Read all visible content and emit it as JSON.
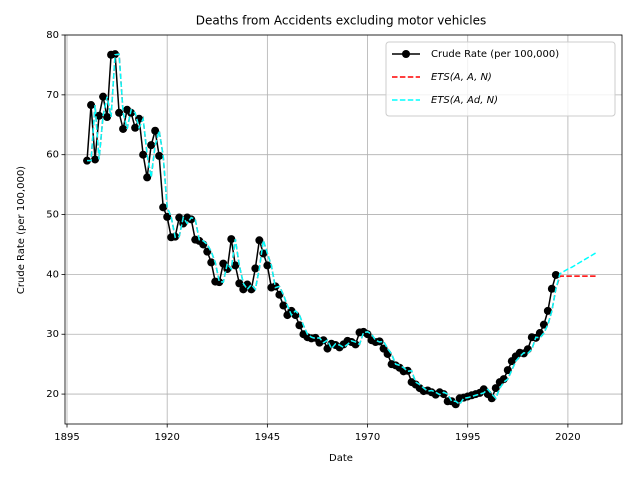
{
  "chart_data": {
    "type": "line",
    "title": "Deaths from Accidents excluding motor vehicles",
    "xlabel": "Date",
    "ylabel": "Crude Rate (per 100,000)",
    "x": [
      1900,
      1901,
      1902,
      1903,
      1904,
      1905,
      1906,
      1907,
      1908,
      1909,
      1910,
      1911,
      1912,
      1913,
      1914,
      1915,
      1916,
      1917,
      1918,
      1919,
      1920,
      1921,
      1922,
      1923,
      1924,
      1925,
      1926,
      1927,
      1928,
      1929,
      1930,
      1931,
      1932,
      1933,
      1934,
      1935,
      1936,
      1937,
      1938,
      1939,
      1940,
      1941,
      1942,
      1943,
      1944,
      1945,
      1946,
      1947,
      1948,
      1949,
      1950,
      1951,
      1952,
      1953,
      1954,
      1955,
      1956,
      1957,
      1958,
      1959,
      1960,
      1961,
      1962,
      1963,
      1964,
      1965,
      1966,
      1967,
      1968,
      1969,
      1970,
      1971,
      1972,
      1973,
      1974,
      1975,
      1976,
      1977,
      1978,
      1979,
      1980,
      1981,
      1982,
      1983,
      1984,
      1985,
      1986,
      1987,
      1988,
      1989,
      1990,
      1991,
      1992,
      1993,
      1994,
      1995,
      1996,
      1997,
      1998,
      1999,
      2000,
      2001,
      2002,
      2003,
      2004,
      2005,
      2006,
      2007,
      2008,
      2009,
      2010,
      2011,
      2012,
      2013,
      2014,
      2015,
      2016,
      2017,
      2018,
      2019,
      2020,
      2021,
      2022,
      2023,
      2024,
      2025,
      2026,
      2027
    ],
    "series": [
      {
        "name": "Crude Rate (per 100,000)",
        "color": "#000000",
        "style": "solid",
        "marker": true,
        "values": [
          59,
          68.3,
          59.2,
          66.5,
          69.7,
          66.3,
          76.7,
          76.8,
          67,
          64.3,
          67.5,
          67,
          64.5,
          66,
          60,
          56.2,
          61.6,
          64,
          59.8,
          51.2,
          49.6,
          46.2,
          46.3,
          49.5,
          48.5,
          49.5,
          49.2,
          45.8,
          45.6,
          45,
          43.8,
          42,
          38.8,
          38.7,
          41.8,
          40.9,
          45.9,
          41.5,
          38.5,
          37.5,
          38.3,
          37.5,
          41,
          45.7,
          43.5,
          41.5,
          37.8,
          38,
          36.6,
          34.8,
          33.2,
          33.9,
          33.2,
          31.5,
          30,
          29.5,
          29.3,
          29.4,
          28.6,
          29,
          27.6,
          28.4,
          28.2,
          27.8,
          28.3,
          28.9,
          28.7,
          28.3,
          30.3,
          30.4,
          30,
          29,
          28.7,
          28.8,
          27.6,
          26.7,
          25,
          24.8,
          24.4,
          23.8,
          23.9,
          22,
          21.6,
          21,
          20.5,
          20.6,
          20.3,
          19.9,
          20.3,
          20,
          18.8,
          18.8,
          18.3,
          19.3,
          19.4,
          19.6,
          19.8,
          20,
          20.2,
          20.8,
          20,
          19.3,
          21,
          22,
          22.5,
          24,
          25.5,
          26.3,
          26.9,
          26.8,
          27.5,
          29.5,
          29.4,
          30.2,
          31.6,
          33.9,
          37.6,
          39.9,
          null,
          null,
          null,
          null,
          null,
          null,
          null,
          null,
          null,
          null
        ]
      },
      {
        "name": "ETS(A, A, N)",
        "color": "#ff0000",
        "style": "dashed",
        "marker": false,
        "values": [
          59,
          59,
          68.3,
          59.2,
          66.5,
          69.7,
          66.3,
          76.7,
          76.8,
          67,
          64.3,
          67.5,
          67,
          64.5,
          66,
          60,
          56.2,
          61.6,
          64,
          59.8,
          51.2,
          49.6,
          46.2,
          46.3,
          49.5,
          48.5,
          49.5,
          49.2,
          45.8,
          45.6,
          45,
          43.8,
          42,
          38.8,
          38.7,
          41.8,
          40.9,
          45.9,
          41.5,
          38.5,
          37.5,
          38.3,
          37.5,
          41,
          45.7,
          43.5,
          41.5,
          37.8,
          38,
          36.6,
          34.8,
          33.2,
          33.9,
          33.2,
          31.5,
          30,
          29.5,
          29.3,
          29.4,
          28.6,
          29,
          27.6,
          28.4,
          28.2,
          27.8,
          28.3,
          28.9,
          28.7,
          28.3,
          30.3,
          30.4,
          30,
          29,
          28.7,
          28.8,
          27.6,
          26.7,
          25,
          24.8,
          24.4,
          23.8,
          23.9,
          22,
          21.6,
          21,
          20.5,
          20.6,
          20.3,
          19.9,
          20.3,
          20,
          18.8,
          18.8,
          18.3,
          19.3,
          19.4,
          19.6,
          19.8,
          20,
          20.2,
          20.8,
          20,
          19.3,
          21,
          22,
          22.5,
          24,
          25.5,
          26.3,
          26.9,
          26.8,
          27.5,
          29.5,
          29.4,
          30.2,
          31.6,
          33.9,
          37.6,
          39.7,
          39.7,
          39.7,
          39.7,
          39.7,
          39.7,
          39.7,
          39.7,
          39.7,
          39.7
        ]
      },
      {
        "name": "ETS(A, Ad, N)",
        "color": "#00ffff",
        "style": "dashed",
        "marker": false,
        "values": [
          59,
          59,
          68.3,
          59.2,
          66.5,
          69.7,
          66.3,
          76.7,
          76.8,
          67,
          64.3,
          67.5,
          67,
          64.5,
          66,
          60,
          56.2,
          61.6,
          64,
          59.8,
          51.2,
          49.6,
          46.2,
          46.3,
          49.5,
          48.5,
          49.5,
          49.2,
          45.8,
          45.6,
          45,
          43.8,
          42,
          38.8,
          38.7,
          41.8,
          40.9,
          45.9,
          41.5,
          38.5,
          37.5,
          38.3,
          37.5,
          41,
          45.7,
          43.5,
          41.5,
          37.8,
          38,
          36.6,
          34.8,
          33.2,
          33.9,
          33.2,
          31.5,
          30,
          29.5,
          29.3,
          29.4,
          28.6,
          29,
          27.6,
          28.4,
          28.2,
          27.8,
          28.3,
          28.9,
          28.7,
          28.3,
          30.3,
          30.4,
          30,
          29,
          28.7,
          28.8,
          27.6,
          26.7,
          25,
          24.8,
          24.4,
          23.8,
          23.9,
          22,
          21.6,
          21,
          20.5,
          20.6,
          20.3,
          19.9,
          20.3,
          20,
          18.8,
          18.8,
          18.3,
          19.3,
          19.4,
          19.6,
          19.8,
          20,
          20.2,
          20.8,
          20,
          19.3,
          21,
          22,
          22.5,
          24,
          25.5,
          26.3,
          26.9,
          26.8,
          27.5,
          29.5,
          29.4,
          30.2,
          31.6,
          33.9,
          37.6,
          40.1,
          40.5,
          40.9,
          41.2,
          41.6,
          42,
          42.4,
          42.8,
          43.2,
          43.6
        ]
      }
    ],
    "xlim": [
      1894.5,
      2033.5
    ],
    "xticks": [
      1895,
      1920,
      1945,
      1970,
      1995,
      2020
    ],
    "ylim": [
      15,
      80
    ],
    "yticks": [
      20,
      30,
      40,
      50,
      60,
      70,
      80
    ],
    "grid": true,
    "legend": "upper right"
  }
}
